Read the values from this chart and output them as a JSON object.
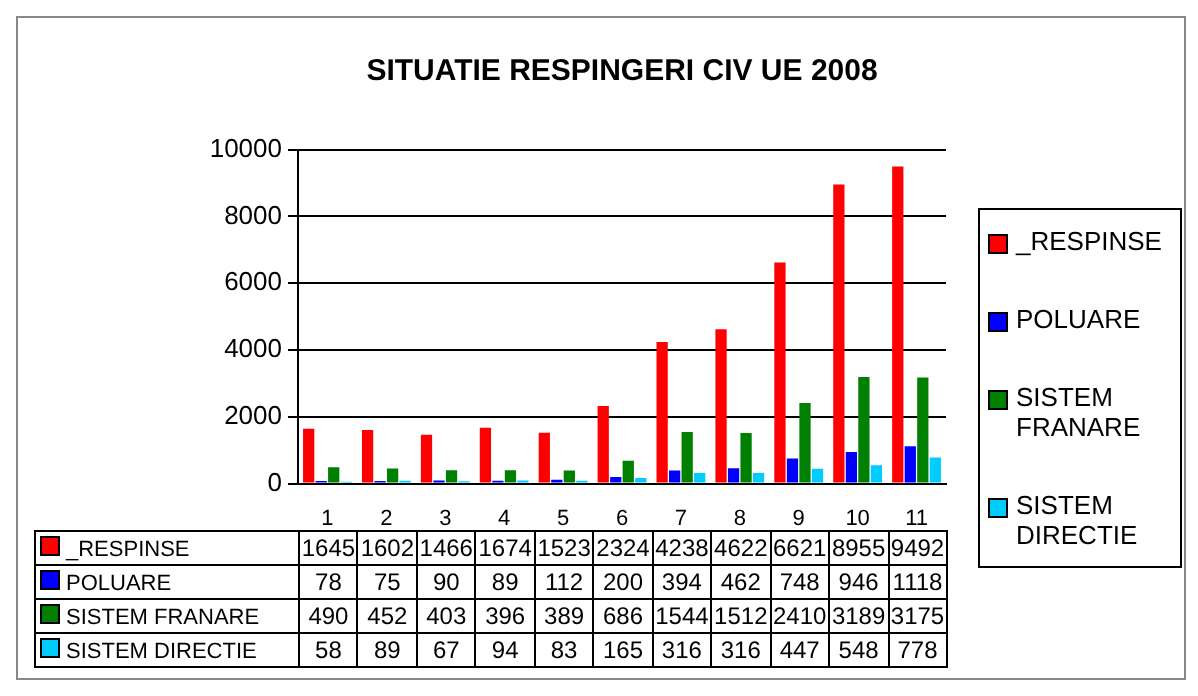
{
  "chart_data": {
    "type": "bar",
    "title": "SITUATIE RESPINGERI CIV UE 2008",
    "categories": [
      "1",
      "2",
      "3",
      "4",
      "5",
      "6",
      "7",
      "8",
      "9",
      "10",
      "11"
    ],
    "series": [
      {
        "name": "_RESPINSE",
        "color": "#ff0000",
        "values": [
          1645,
          1602,
          1466,
          1674,
          1523,
          2324,
          4238,
          4622,
          6621,
          8955,
          9492
        ]
      },
      {
        "name": "POLUARE",
        "color": "#0000ff",
        "values": [
          78,
          75,
          90,
          89,
          112,
          200,
          394,
          462,
          748,
          946,
          1118
        ]
      },
      {
        "name": "SISTEM FRANARE",
        "color": "#008000",
        "values": [
          490,
          452,
          403,
          396,
          389,
          686,
          1544,
          1512,
          2410,
          3189,
          3175
        ]
      },
      {
        "name": "SISTEM DIRECTIE",
        "color": "#00ccff",
        "values": [
          58,
          89,
          67,
          94,
          83,
          165,
          316,
          316,
          447,
          548,
          778
        ]
      }
    ],
    "ylim": [
      0,
      10000
    ],
    "yticks": [
      0,
      2000,
      4000,
      6000,
      8000,
      10000
    ],
    "grid": "y",
    "legend": "right",
    "data_labels": true
  }
}
